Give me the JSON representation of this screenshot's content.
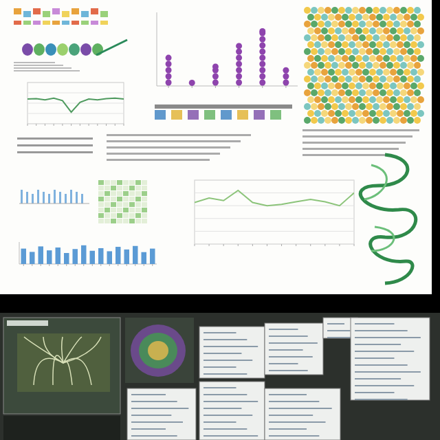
{
  "chart_data": [
    {
      "type": "bar",
      "categories": [
        null,
        null,
        null,
        null,
        null,
        null
      ],
      "values": [
        42,
        8,
        30,
        58,
        78,
        25
      ],
      "color": "#8e44ad",
      "ylim": [
        0,
        100
      ],
      "tick_labels": false,
      "marker": "circle"
    },
    {
      "type": "line",
      "categories": [
        null,
        null,
        null,
        null,
        null,
        null,
        null,
        null,
        null,
        null,
        null,
        null
      ],
      "values": [
        65,
        72,
        68,
        84,
        65,
        60,
        62,
        66,
        70,
        66,
        60,
        80
      ],
      "color": "#8cc47a",
      "ylim": [
        0,
        100
      ],
      "yticks": [
        0,
        20,
        40,
        60,
        80,
        100
      ],
      "grid": true,
      "tick_labels": false
    },
    {
      "type": "line",
      "categories": [
        null,
        null,
        null,
        null,
        null,
        null,
        null,
        null,
        null,
        null,
        null,
        null
      ],
      "values": [
        60,
        61,
        58,
        62,
        56,
        28,
        52,
        60,
        58,
        61,
        62,
        60
      ],
      "color": "#4e9a5e",
      "ylim": [
        0,
        100
      ],
      "yticks": [
        25,
        50,
        75
      ],
      "grid": true,
      "tick_labels": false
    },
    {
      "type": "bar",
      "categories": [
        null,
        null,
        null,
        null,
        null,
        null,
        null,
        null,
        null,
        null,
        null,
        null,
        null,
        null,
        null,
        null
      ],
      "values": [
        70,
        55,
        80,
        62,
        75,
        50,
        68,
        85,
        60,
        72,
        58,
        78,
        66,
        82,
        54,
        70
      ],
      "color": "#5b9bd5",
      "ylim": [
        0,
        100
      ],
      "tick_labels": false
    }
  ]
}
